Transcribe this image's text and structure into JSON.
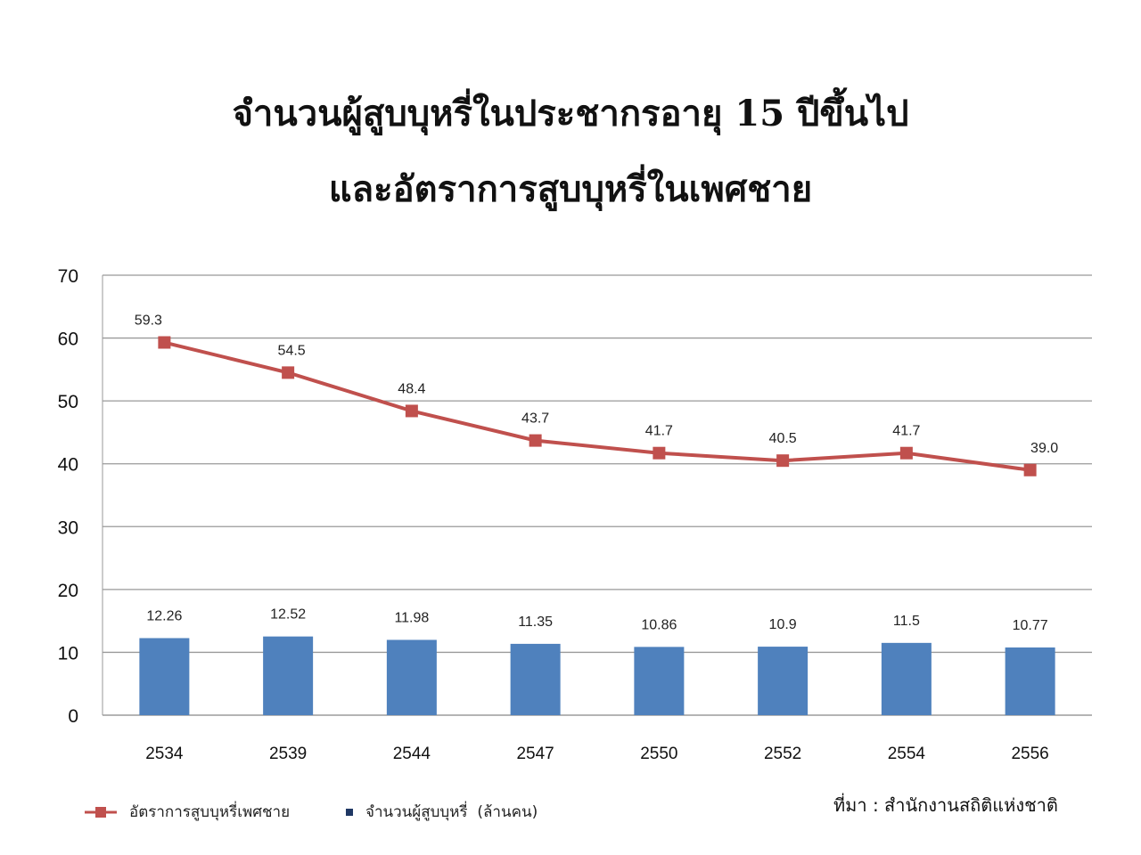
{
  "chart_data": {
    "type": "bar+line",
    "title": [
      "จำนวนผู้สูบบุหรี่ในประชากรอายุ 15 ปีขึ้นไป",
      "และอัตราการสูบบุหรี่ในเพศชาย"
    ],
    "categories": [
      "2534",
      "2539",
      "2544",
      "2547",
      "2550",
      "2552",
      "2554",
      "2556"
    ],
    "series": [
      {
        "name": "อัตราการสูบบุหรี่เพศชาย",
        "type": "line",
        "color": "#C0504D",
        "values": [
          59.3,
          54.5,
          48.4,
          43.7,
          41.7,
          40.5,
          41.7,
          39.0
        ],
        "labels": [
          "59.3",
          "54.5",
          "48.4",
          "43.7",
          "41.7",
          "40.5",
          "41.7",
          "39.0"
        ]
      },
      {
        "name": "จำนวนผู้สูบบุหรี่  (ล้านคน)",
        "type": "bar",
        "color": "#4F81BD",
        "values": [
          12.26,
          12.52,
          11.98,
          11.35,
          10.86,
          10.9,
          11.5,
          10.77
        ],
        "labels": [
          "12.26",
          "12.52",
          "11.98",
          "11.35",
          "10.86",
          "10.9",
          "11.5",
          "10.77"
        ]
      }
    ],
    "ylim": [
      0,
      70
    ],
    "yticks": [
      "0",
      "10",
      "20",
      "30",
      "40",
      "50",
      "60",
      "70"
    ],
    "grid": true,
    "legend": "bottom-left",
    "source": "ที่มา : สำนักงานสถิติแห่งชาติ"
  }
}
